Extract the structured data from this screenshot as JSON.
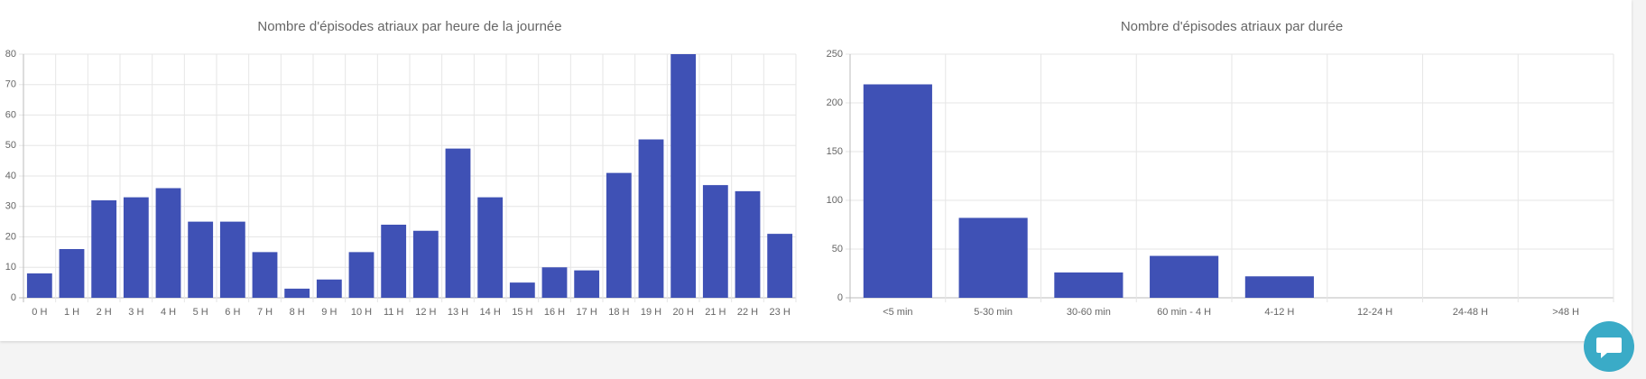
{
  "chart_data": [
    {
      "type": "bar",
      "title": "Nombre d'épisodes atriaux par heure de la journée",
      "categories": [
        "0 H",
        "1 H",
        "2 H",
        "3 H",
        "4 H",
        "5 H",
        "6 H",
        "7 H",
        "8 H",
        "9 H",
        "10 H",
        "11 H",
        "12 H",
        "13 H",
        "14 H",
        "15 H",
        "16 H",
        "17 H",
        "18 H",
        "19 H",
        "20 H",
        "21 H",
        "22 H",
        "23 H"
      ],
      "values": [
        8,
        16,
        32,
        33,
        36,
        25,
        25,
        15,
        3,
        6,
        15,
        24,
        22,
        49,
        33,
        5,
        10,
        9,
        41,
        52,
        80,
        37,
        35,
        21
      ],
      "color": "#3f51b5",
      "ylim": [
        0,
        80
      ],
      "yticks": [
        0,
        10,
        20,
        30,
        40,
        50,
        60,
        70,
        80
      ],
      "grid": true
    },
    {
      "type": "bar",
      "title": "Nombre d'épisodes atriaux par durée",
      "categories": [
        "<5 min",
        "5-30 min",
        "30-60 min",
        "60 min - 4 H",
        "4-12 H",
        "12-24 H",
        "24-48 H",
        ">48 H"
      ],
      "values": [
        219,
        82,
        26,
        43,
        22,
        0,
        0,
        0
      ],
      "color": "#3f51b5",
      "ylim": [
        0,
        250
      ],
      "yticks": [
        0,
        50,
        100,
        150,
        200,
        250
      ],
      "grid": true
    }
  ]
}
